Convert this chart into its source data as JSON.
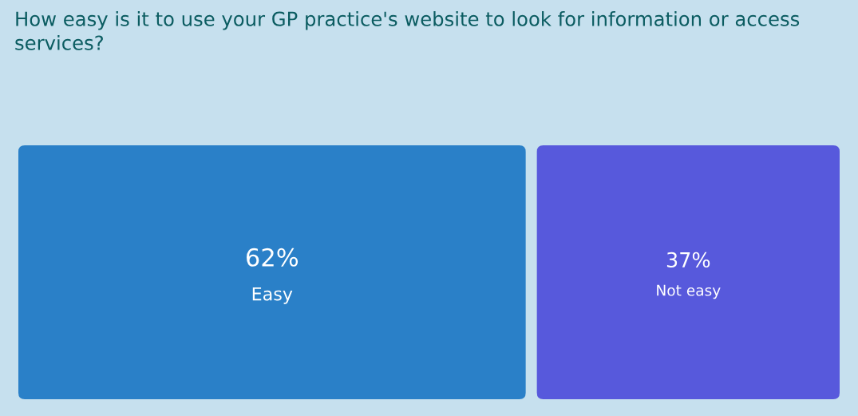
{
  "chart_data": {
    "type": "other",
    "title": "How easy is it to use your GP practice's website to look for information or access services?",
    "categories": [
      "Easy",
      "Not easy"
    ],
    "values": [
      62,
      37
    ],
    "value_labels": [
      "62%",
      "37%"
    ],
    "colors": [
      "#2a80c8",
      "#5759dc"
    ]
  }
}
